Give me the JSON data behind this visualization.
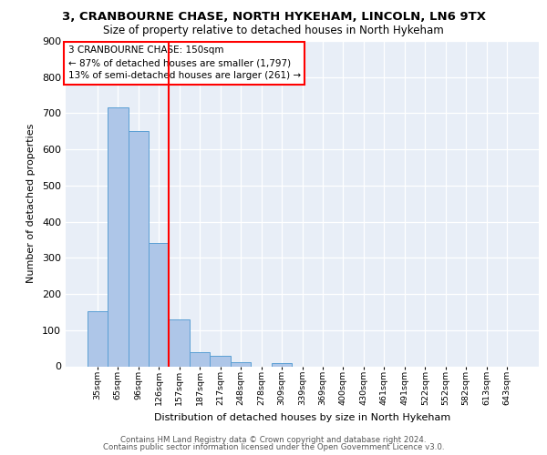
{
  "title1": "3, CRANBOURNE CHASE, NORTH HYKEHAM, LINCOLN, LN6 9TX",
  "title2": "Size of property relative to detached houses in North Hykeham",
  "xlabel": "Distribution of detached houses by size in North Hykeham",
  "ylabel": "Number of detached properties",
  "footer1": "Contains HM Land Registry data © Crown copyright and database right 2024.",
  "footer2": "Contains public sector information licensed under the Open Government Licence v3.0.",
  "categories": [
    "35sqm",
    "65sqm",
    "96sqm",
    "126sqm",
    "157sqm",
    "187sqm",
    "217sqm",
    "248sqm",
    "278sqm",
    "309sqm",
    "339sqm",
    "369sqm",
    "400sqm",
    "430sqm",
    "461sqm",
    "491sqm",
    "522sqm",
    "552sqm",
    "582sqm",
    "613sqm",
    "643sqm"
  ],
  "values": [
    152,
    716,
    651,
    340,
    130,
    40,
    28,
    11,
    0,
    8,
    0,
    0,
    0,
    0,
    0,
    0,
    0,
    0,
    0,
    0,
    0
  ],
  "bar_color": "#aec6e8",
  "bar_edge_color": "#5a9fd4",
  "vline_x": 3.5,
  "vline_color": "red",
  "annotation_line1": "3 CRANBOURNE CHASE: 150sqm",
  "annotation_line2": "← 87% of detached houses are smaller (1,797)",
  "annotation_line3": "13% of semi-detached houses are larger (261) →",
  "annotation_box_color": "white",
  "annotation_box_edge_color": "red",
  "ylim": [
    0,
    900
  ],
  "yticks": [
    0,
    100,
    200,
    300,
    400,
    500,
    600,
    700,
    800,
    900
  ],
  "background_color": "#e8eef7",
  "plot_bg_color": "#e8eef7",
  "title1_fontsize": 9.5,
  "title2_fontsize": 8.5
}
